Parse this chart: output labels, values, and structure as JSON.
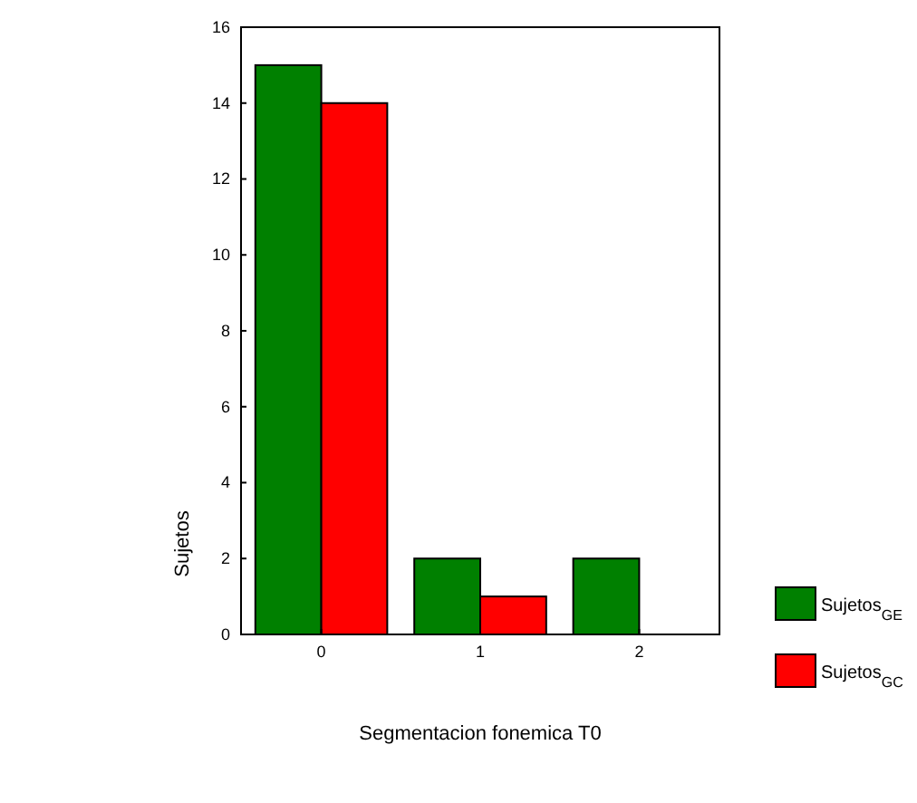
{
  "chart_data": {
    "type": "bar",
    "xlabel": "Segmentacion fonemica T0",
    "ylabel": "Sujetos",
    "categories": [
      "0",
      "1",
      "2"
    ],
    "series": [
      {
        "name": "Sujetos$_{GE}$",
        "color": "#008000",
        "values": [
          15,
          2,
          2
        ]
      },
      {
        "name": "Sujetos$_{GC}$",
        "color": "#ff0000",
        "values": [
          14,
          1,
          0
        ]
      }
    ],
    "ylim": [
      0,
      16
    ],
    "yticks": [
      0,
      2,
      4,
      6,
      8,
      10,
      12,
      14,
      16
    ],
    "grid": false,
    "legend": "bottom right"
  }
}
